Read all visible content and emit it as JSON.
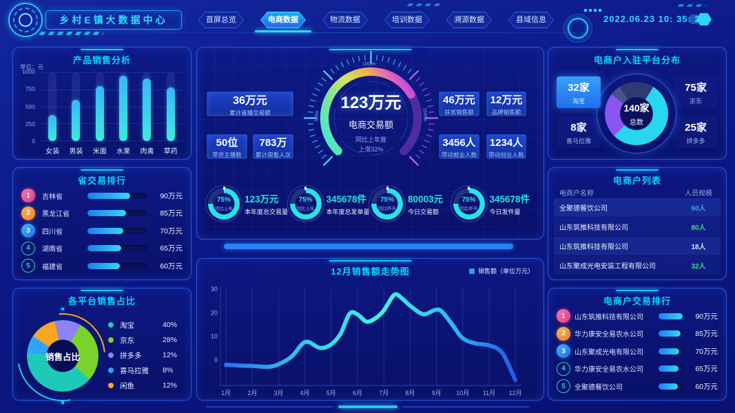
{
  "header": {
    "title": "乡村E镇大数据中心",
    "datetime": "2022.06.23 10: 35: 23",
    "tabs": [
      {
        "label": "首屏总览",
        "active": false
      },
      {
        "label": "电商数据",
        "active": true
      },
      {
        "label": "物流数据",
        "active": false
      },
      {
        "label": "培训数据",
        "active": false
      },
      {
        "label": "溯源数据",
        "active": false
      },
      {
        "label": "县域信息",
        "active": false
      }
    ]
  },
  "center": {
    "stats": [
      {
        "value": "36万元",
        "label": "累计直播交易额"
      },
      {
        "value": "50位",
        "label": "带货主播数"
      },
      {
        "value": "783万",
        "label": "累计观看人次"
      },
      {
        "value": "46万元",
        "label": "扶贫销售额"
      },
      {
        "value": "12万元",
        "label": "品牌销售额"
      },
      {
        "value": "3456人",
        "label": "带动就业人数"
      },
      {
        "value": "1234人",
        "label": "带动创业人数"
      }
    ]
  },
  "chart_data": [
    {
      "id": "product_sales",
      "type": "bar",
      "title": "产品销售分析",
      "unit_label": "单位：元",
      "categories": [
        "女装",
        "男装",
        "米面",
        "水果",
        "肉禽",
        "草药"
      ],
      "values": [
        380,
        600,
        800,
        950,
        910,
        780
      ],
      "ylim": [
        0,
        1000
      ],
      "yticks": [
        1000,
        750,
        500,
        250,
        0
      ],
      "grid": true
    },
    {
      "id": "province_ranking",
      "type": "bar",
      "orientation": "horizontal",
      "title": "省交易排行",
      "unit": "万元",
      "items": [
        {
          "rank": 1,
          "name": "吉林省",
          "value": 90,
          "display": "90万元",
          "percent": 72,
          "badge": "b1"
        },
        {
          "rank": 2,
          "name": "黑龙江省",
          "value": 85,
          "display": "85万元",
          "percent": 65,
          "badge": "b2"
        },
        {
          "rank": 3,
          "name": "四川省",
          "value": 70,
          "display": "70万元",
          "percent": 60,
          "badge": "b3"
        },
        {
          "rank": 4,
          "name": "湖南省",
          "value": 65,
          "display": "65万元",
          "percent": 57,
          "badge": "outline"
        },
        {
          "rank": 5,
          "name": "福建省",
          "value": 60,
          "display": "60万元",
          "percent": 55,
          "badge": "outline"
        }
      ]
    },
    {
      "id": "platform_share",
      "type": "pie",
      "title": "各平台销售占比",
      "center_label": "销售占比",
      "start_angle": 30,
      "segments": [
        {
          "label": "京东",
          "value": 28,
          "color": "#78d32a"
        },
        {
          "label": "淘宝",
          "value": 40,
          "color": "#1fc9b8"
        },
        {
          "label": "喜马拉雅",
          "value": 8,
          "color": "#2da4f5"
        },
        {
          "label": "闲鱼",
          "value": 12,
          "color": "#f5a623"
        },
        {
          "label": "拼多多",
          "value": 12,
          "color": "#8c82f2"
        }
      ],
      "legend": [
        {
          "name": "淘宝",
          "percent": "40%",
          "color": "#1fc9b8"
        },
        {
          "name": "京东",
          "percent": "28%",
          "color": "#78d32a"
        },
        {
          "name": "拼多多",
          "percent": "12%",
          "color": "#8c82f2"
        },
        {
          "name": "喜马拉雅",
          "percent": "8%",
          "color": "#2da4f5"
        },
        {
          "name": "闲鱼",
          "percent": "12%",
          "color": "#f5a623"
        }
      ],
      "legend_position": "right"
    },
    {
      "id": "transaction_gauge",
      "type": "gauge",
      "display": "123万元",
      "label": "电商交易额",
      "note1": "同比上年度",
      "note2": "上涨32%",
      "percent": 72,
      "scale": [
        {
          "label": "500w",
          "angle": -88
        },
        {
          "label": "1000w",
          "angle": -2
        },
        {
          "label": "1500w",
          "angle": 86
        }
      ],
      "arc_gradient": [
        [
          0,
          "#3be6da"
        ],
        [
          0.3,
          "#79e698"
        ],
        [
          0.5,
          "#cfe562"
        ],
        [
          0.68,
          "#f0b44e"
        ],
        [
          0.85,
          "#e25ec0"
        ],
        [
          1,
          "#a638f0"
        ]
      ]
    },
    {
      "id": "kpi_donuts",
      "type": "pie",
      "variant": "ring-kpi",
      "ring_color": "#27e2e8",
      "ring_bg": "#22327e",
      "items": [
        {
          "percent": 75,
          "percent_display": "75%",
          "note": "同比上年",
          "value": "123万元",
          "label": "本年度总交易量"
        },
        {
          "percent": 75,
          "percent_display": "75%",
          "note": "同比上年",
          "value": "345678件",
          "label": "本年度总发单量"
        },
        {
          "percent": 75,
          "percent_display": "75%",
          "note": "同比昨天",
          "value": "80003元",
          "label": "今日交易额"
        },
        {
          "percent": 75,
          "percent_display": "75%",
          "note": "同比昨天",
          "value": "345678件",
          "label": "今日发件量"
        }
      ]
    },
    {
      "id": "monthly_trend",
      "type": "line",
      "title": "12月销售额走势图",
      "legend": [
        "销售额（单位万元）"
      ],
      "legend_color": "#2d9bf0",
      "categories": [
        "1月",
        "2月",
        "3月",
        "4月",
        "5月",
        "6月",
        "7月",
        "8月",
        "9月",
        "10月",
        "11月",
        "12月"
      ],
      "values": [
        -2,
        -2.5,
        -1.8,
        7.5,
        6,
        19.5,
        21,
        23,
        21,
        9,
        6,
        -8
      ],
      "yticks": [
        30,
        20,
        10,
        0
      ],
      "ylim": [
        -12,
        32
      ],
      "grid": "vertical",
      "smooth_points": [
        [
          1,
          -2
        ],
        [
          1.6,
          -2.4
        ],
        [
          2,
          -2.5
        ],
        [
          2.6,
          -2.9
        ],
        [
          3,
          -1.8
        ],
        [
          3.5,
          1.5
        ],
        [
          3.9,
          6.8
        ],
        [
          4.15,
          7.6
        ],
        [
          4.55,
          5.2
        ],
        [
          4.95,
          6.2
        ],
        [
          5.35,
          11
        ],
        [
          5.7,
          19.6
        ],
        [
          6,
          19.3
        ],
        [
          6.35,
          16.2
        ],
        [
          6.7,
          17.8
        ],
        [
          7,
          21
        ],
        [
          7.4,
          27.6
        ],
        [
          7.7,
          26
        ],
        [
          8,
          23
        ],
        [
          8.5,
          19.4
        ],
        [
          8.95,
          21.2
        ],
        [
          9.2,
          20.6
        ],
        [
          9.6,
          15
        ],
        [
          10,
          9.2
        ],
        [
          10.5,
          7
        ],
        [
          11,
          6.2
        ],
        [
          11.5,
          3
        ],
        [
          12,
          -8.5
        ]
      ],
      "gradient_stops": [
        [
          0,
          "#2e6ff0"
        ],
        [
          0.3,
          "#33d3ec"
        ],
        [
          0.55,
          "#3ff0e4"
        ],
        [
          0.78,
          "#2fb9f2"
        ],
        [
          1,
          "#2457e8"
        ]
      ]
    },
    {
      "id": "platform_distribution",
      "type": "pie",
      "title": "电商户入驻平台分布",
      "center_value": "140家",
      "center_label": "总数",
      "total": 140,
      "start_angle": -32,
      "segments": [
        {
          "label": "拼多多",
          "value": 25,
          "color": "#2e3b72"
        },
        {
          "label": "京东",
          "value": 75,
          "color": "#27d6ef"
        },
        {
          "label": "淘宝",
          "value": 32,
          "color": "#8a55f2"
        },
        {
          "label": "喜马拉雅",
          "value": 8,
          "color": "#46538a"
        }
      ],
      "boxes": [
        {
          "value": "32家",
          "label": "淘宝",
          "highlight": true
        },
        {
          "value": "75家",
          "label": "京东",
          "highlight": false
        },
        {
          "value": "8家",
          "label": "喜马拉雅",
          "highlight": false
        },
        {
          "value": "25家",
          "label": "拼多多",
          "highlight": false
        }
      ]
    },
    {
      "id": "merchant_list",
      "type": "table",
      "title": "电商户列表",
      "headers": [
        "电商户名称",
        "人员规模"
      ],
      "rows": [
        {
          "name": "全聚德餐饮公司",
          "size": "60人",
          "size_color": "#3aa0f5"
        },
        {
          "name": "山东筑推科技有限公司",
          "size": "80人",
          "size_color": "#35e08a"
        },
        {
          "name": "山东筑推科技有限公司",
          "size": "18人",
          "size_color": "#d8e4ff"
        },
        {
          "name": "山东聚成光电安装工程有限公司",
          "size": "32人",
          "size_color": "#35e08a"
        }
      ]
    },
    {
      "id": "merchant_ranking",
      "type": "bar",
      "orientation": "horizontal",
      "title": "电商户交易排行",
      "unit": "万元",
      "items": [
        {
          "rank": 1,
          "name": "山东筑推科技有限公司",
          "value": 90,
          "display": "90万元",
          "percent": 98,
          "badge": "b1"
        },
        {
          "rank": 2,
          "name": "华力康安全易农水公司",
          "value": 85,
          "display": "85万元",
          "percent": 90,
          "badge": "b2"
        },
        {
          "rank": 3,
          "name": "山东聚成光电有限公司",
          "value": 70,
          "display": "70万元",
          "percent": 84,
          "badge": "b3"
        },
        {
          "rank": 4,
          "name": "华力康安全易农水公司",
          "value": 65,
          "display": "65万元",
          "percent": 80,
          "badge": "outline"
        },
        {
          "rank": 5,
          "name": "全聚德餐饮公司",
          "value": 60,
          "display": "60万元",
          "percent": 77,
          "badge": "outline"
        }
      ]
    }
  ]
}
